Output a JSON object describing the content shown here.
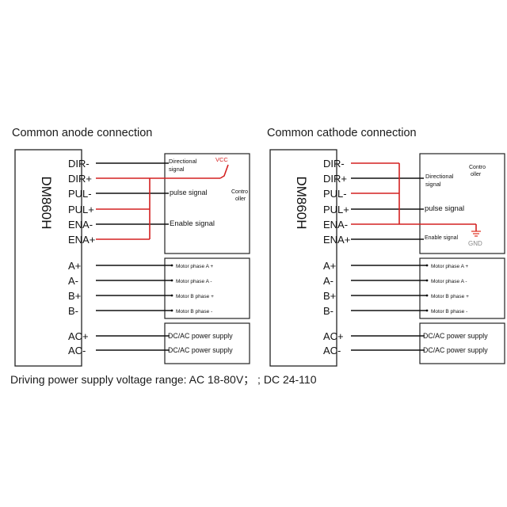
{
  "colors": {
    "signal_wire": "#d42020",
    "gnd_symbol": "#e0301e",
    "line": "#111111",
    "box": "#222222"
  },
  "left": {
    "title": "Common anode connection",
    "driver_label": "DM860H",
    "terminals": [
      "DIR-",
      "DIR+",
      "PUL-",
      "PUL+",
      "ENA-",
      "ENA+",
      "A+",
      "A-",
      "B+",
      "B-",
      "AC+",
      "AC-"
    ],
    "controller": {
      "label": "Controller",
      "vcc": "VCC",
      "directional_signal": "Directional signal",
      "pulse_signal": "pulse signal",
      "enable_signal": "Enable signal"
    },
    "motor": [
      "Motor phase A +",
      "Motor phase A -",
      "Motor B phase +",
      "Motor B phase -"
    ],
    "power": [
      "DC/AC power supply",
      "DC/AC power supply"
    ]
  },
  "right": {
    "title": "Common cathode connection",
    "driver_label": "DM860H",
    "terminals": [
      "DIR-",
      "DIR+",
      "PUL-",
      "PUL+",
      "ENA-",
      "ENA+",
      "A+",
      "A-",
      "B+",
      "B-",
      "AC+",
      "AC-"
    ],
    "controller": {
      "label": "Controller",
      "gnd": "GND",
      "directional_signal": "Directional signal",
      "pulse_signal": "pulse signal",
      "enable_signal": "Enable signal"
    },
    "motor": [
      "Motor phase A +",
      "Motor phase A -",
      "Motor B phase +",
      "Motor B phase -"
    ],
    "power": [
      "DC/AC power supply",
      "DC/AC power supply"
    ]
  },
  "footer": "Driving power supply voltage range: AC 18-80V； ; DC 24-110"
}
